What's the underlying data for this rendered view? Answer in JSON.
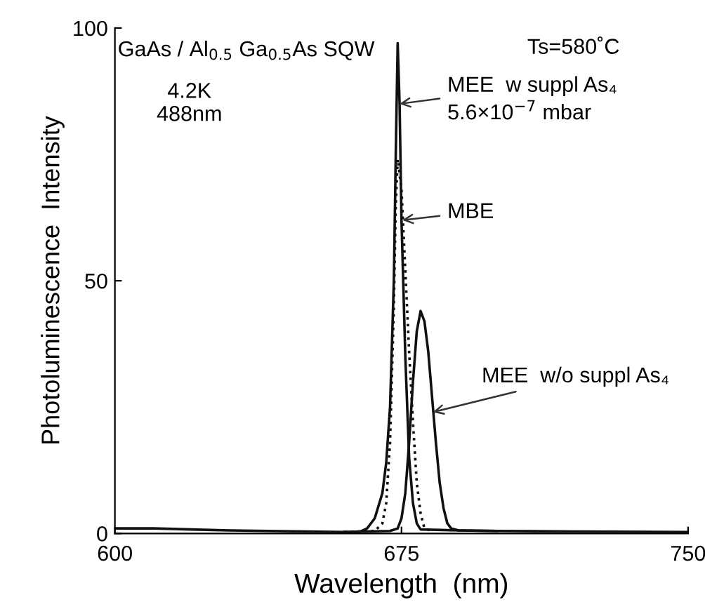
{
  "chart_data": {
    "type": "line",
    "xlabel": "Wavelength  (nm)",
    "ylabel": "Photoluminescence  Intensity",
    "xlim": [
      600,
      750
    ],
    "ylim": [
      0,
      100
    ],
    "xticks": [
      600,
      675,
      750
    ],
    "yticks": [
      0,
      50,
      100
    ],
    "grid": false,
    "legend": false,
    "marker": "none",
    "series": [
      {
        "color": "#111111",
        "line_style": "solid",
        "x": [
          600,
          610,
          620,
          630,
          640,
          650,
          660,
          664,
          666,
          668,
          670,
          671,
          672,
          673,
          673.5,
          674,
          674.5,
          675,
          676,
          677,
          678,
          679,
          680,
          690,
          700,
          720,
          750
        ],
        "values": [
          1,
          1,
          0.8,
          0.6,
          0.5,
          0.4,
          0.3,
          0.3,
          1,
          3,
          8,
          14,
          25,
          50,
          75,
          97,
          85,
          62,
          35,
          15,
          6,
          2,
          0.8,
          0.6,
          0.5,
          0.4,
          0.3
        ]
      },
      {
        "color": "#111111",
        "line_style": "dotted",
        "x": [
          660,
          668,
          670,
          671,
          672,
          673,
          673.5,
          674,
          675,
          676,
          677,
          678,
          679,
          680,
          681,
          683
        ],
        "values": [
          0.3,
          0.5,
          2,
          6,
          18,
          45,
          65,
          74,
          68,
          52,
          36,
          22,
          10,
          4,
          1,
          0.5
        ]
      },
      {
        "color": "#111111",
        "line_style": "solid",
        "x": [
          660,
          672,
          674,
          675,
          676,
          677,
          678,
          679,
          680,
          681,
          682,
          683,
          684,
          685,
          686,
          687,
          688,
          690,
          700
        ],
        "values": [
          0.3,
          0.5,
          1,
          3,
          8,
          18,
          30,
          40,
          44,
          42,
          36,
          27,
          18,
          10,
          5,
          2,
          1,
          0.6,
          0.5
        ]
      }
    ],
    "annotations": [
      "GaAs / Al$_{0.5}$ Ga$_{0.5}$As SQW",
      "4.2K\n488nm",
      "Ts=580˚C",
      {
        "text": "MEE  w suppl As₄",
        "x": 674.5,
        "y": 85
      },
      "5.6×10$^{−7}$ mbar",
      {
        "text": "MBE",
        "x": 675.2,
        "y": 62
      },
      {
        "text": "MEE  w/o suppl As₄",
        "x": 683.2,
        "y": 24
      }
    ]
  }
}
